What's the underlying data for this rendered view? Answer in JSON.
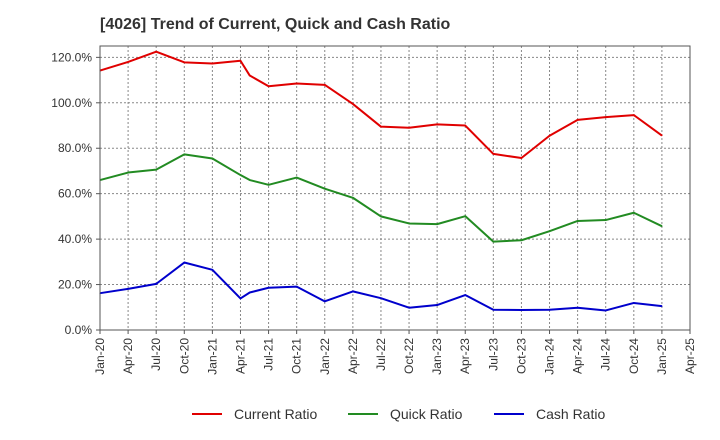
{
  "chart_data": {
    "type": "line",
    "title": "[4026]  Trend of Current, Quick and Cash Ratio",
    "xlabel": "",
    "ylabel": "",
    "ylim": [
      0,
      125
    ],
    "y_ticks": [
      0,
      20,
      40,
      60,
      80,
      100,
      120
    ],
    "y_tick_labels": [
      "0.0%",
      "20.0%",
      "40.0%",
      "60.0%",
      "80.0%",
      "100.0%",
      "120.0%"
    ],
    "x_tick_labels": [
      "Jan-20",
      "Apr-20",
      "Jul-20",
      "Oct-20",
      "Jan-21",
      "Apr-21",
      "Jul-21",
      "Oct-21",
      "Jan-22",
      "Apr-22",
      "Jul-22",
      "Oct-22",
      "Jan-23",
      "Apr-23",
      "Jul-23",
      "Oct-23",
      "Jan-24",
      "Apr-24",
      "Jul-24",
      "Oct-24",
      "Jan-25",
      "Apr-25"
    ],
    "x_points": [
      "Jan-20",
      "Apr-20",
      "Jul-20",
      "Oct-20",
      "Jan-21",
      "Apr-21",
      "May-21",
      "Jul-21",
      "Oct-21",
      "Jan-22",
      "Apr-22",
      "Jul-22",
      "Oct-22",
      "Jan-23",
      "Apr-23",
      "Jul-23",
      "Oct-23",
      "Jan-24",
      "Apr-24",
      "Jul-24",
      "Oct-24",
      "Jan-25"
    ],
    "x_index": [
      0,
      1,
      2,
      3,
      4,
      5,
      5.33,
      6,
      7,
      8,
      9,
      10,
      11,
      12,
      13,
      14,
      15,
      16,
      17,
      18,
      19,
      20
    ],
    "grid": true,
    "legend_position": "bottom",
    "series": [
      {
        "name": "Current Ratio",
        "color": "#e00000",
        "values": [
          114.2,
          118.0,
          122.5,
          117.8,
          117.3,
          118.5,
          112.0,
          107.3,
          108.5,
          107.9,
          99.5,
          89.5,
          89.0,
          90.5,
          90.0,
          77.5,
          75.7,
          85.5,
          92.5,
          93.7,
          94.6,
          85.6
        ]
      },
      {
        "name": "Quick Ratio",
        "color": "#228b22",
        "values": [
          66.0,
          69.3,
          70.6,
          77.3,
          75.5,
          68.2,
          66.0,
          63.9,
          67.1,
          62.2,
          58.2,
          50.0,
          46.9,
          46.6,
          50.1,
          38.9,
          39.5,
          43.5,
          48.0,
          48.4,
          51.6,
          45.7
        ]
      },
      {
        "name": "Cash Ratio",
        "color": "#0000cc",
        "values": [
          16.2,
          18.1,
          20.3,
          29.7,
          26.5,
          13.9,
          16.5,
          18.6,
          19.1,
          12.6,
          17.0,
          14.0,
          9.8,
          11.0,
          15.4,
          8.9,
          8.8,
          8.9,
          9.8,
          8.6,
          11.9,
          10.5
        ]
      }
    ]
  }
}
